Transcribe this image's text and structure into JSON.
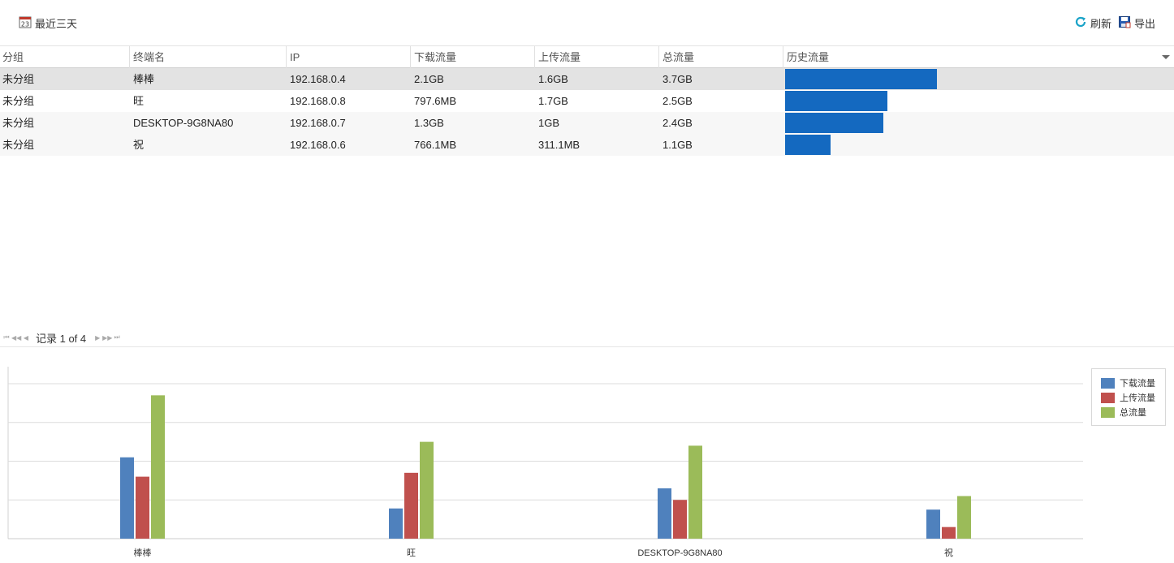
{
  "toolbar": {
    "date_range_icon_text": "23",
    "date_range_label": "最近三天",
    "refresh_label": "刷新",
    "export_label": "导出"
  },
  "table": {
    "columns": [
      "分组",
      "终端名",
      "IP",
      "下载流量",
      "上传流量",
      "总流量",
      "历史流量"
    ],
    "rows": [
      {
        "group": "未分组",
        "name": "棒棒",
        "ip": "192.168.0.4",
        "download": "2.1GB",
        "upload": "1.6GB",
        "total": "3.7GB",
        "history": 1.0
      },
      {
        "group": "未分组",
        "name": "旺",
        "ip": "192.168.0.8",
        "download": "797.6MB",
        "upload": "1.7GB",
        "total": "2.5GB",
        "history": 0.676
      },
      {
        "group": "未分组",
        "name": "DESKTOP-9G8NA80",
        "ip": "192.168.0.7",
        "download": "1.3GB",
        "upload": "1GB",
        "total": "2.4GB",
        "history": 0.649
      },
      {
        "group": "未分组",
        "name": "祝",
        "ip": "192.168.0.6",
        "download": "766.1MB",
        "upload": "311.1MB",
        "total": "1.1GB",
        "history": 0.297
      }
    ]
  },
  "pager": {
    "text": "记录 1 of 4"
  },
  "colors": {
    "history_bar": "#1469c0",
    "download": "#4f81bd",
    "upload": "#c0504d",
    "total": "#9bbb59"
  },
  "chart_data": {
    "type": "bar",
    "categories": [
      "棒棒",
      "旺",
      "DESKTOP-9G8NA80",
      "祝"
    ],
    "series": [
      {
        "name": "下载流量",
        "color": "#4f81bd",
        "values": [
          2.1,
          0.78,
          1.3,
          0.75
        ]
      },
      {
        "name": "上传流量",
        "color": "#c0504d",
        "values": [
          1.6,
          1.7,
          1.0,
          0.3
        ]
      },
      {
        "name": "总流量",
        "color": "#9bbb59",
        "values": [
          3.7,
          2.5,
          2.4,
          1.1
        ]
      }
    ],
    "ylim": [
      0,
      4
    ],
    "y_tick_labels": false,
    "grid": true,
    "legend_position": "right"
  }
}
